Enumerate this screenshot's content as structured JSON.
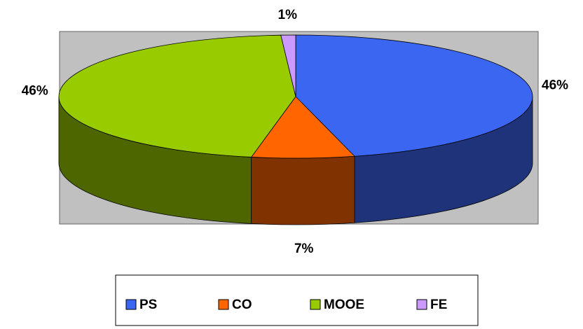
{
  "chart_data": {
    "type": "pie3d",
    "categories": [
      "PS",
      "CO",
      "MOOE",
      "FE"
    ],
    "values": [
      46,
      7,
      46,
      1
    ],
    "value_labels": [
      "46%",
      "7%",
      "46%",
      "1%"
    ],
    "colors": [
      "#3b66f2",
      "#ff6600",
      "#99cc00",
      "#cc99ff"
    ],
    "legend": "bottom"
  }
}
